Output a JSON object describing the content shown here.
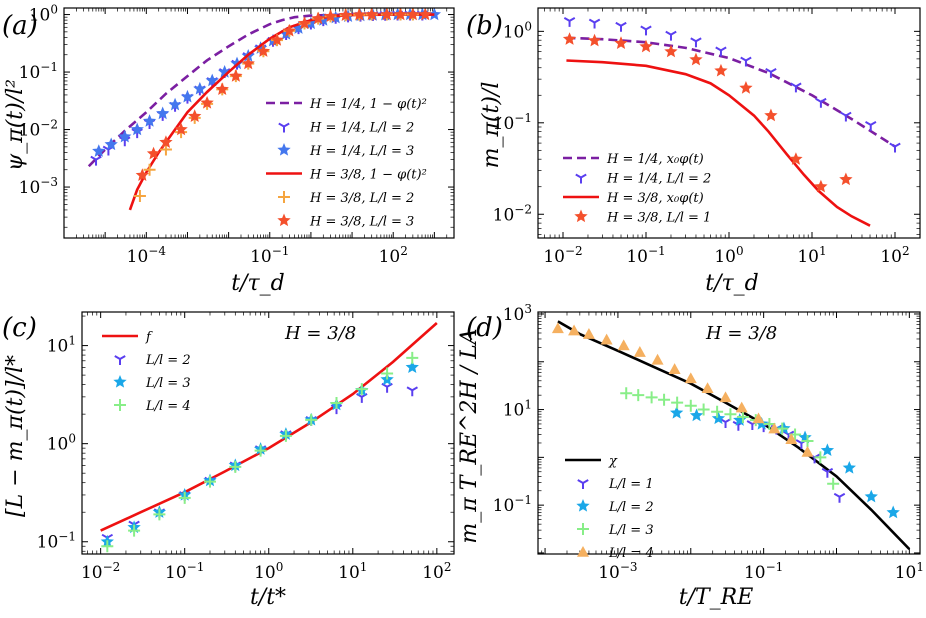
{
  "colors": {
    "purple": "#7b1fa2",
    "red": "#ee1111",
    "blue_marker": "#5a3ff0",
    "blue_star": "#4477ee",
    "orange_marker": "#f5a540",
    "red_star": "#f4502c",
    "cyan_star": "#1aa7e8",
    "green_plus": "#88ee88",
    "orange_tri": "#f5b060",
    "black": "#000000"
  },
  "chart_data": [
    {
      "id": "a",
      "panel_label": "(a)",
      "type": "line",
      "xscale": "log",
      "yscale": "log",
      "xlim": [
        1e-06,
        3000
      ],
      "ylim": [
        0.00013,
        1.3
      ],
      "xticks": [
        {
          "v": 0.0001,
          "label": "10^-4"
        },
        {
          "v": 0.1,
          "label": "10^-1"
        },
        {
          "v": 100,
          "label": "10^2"
        }
      ],
      "yticks": [
        {
          "v": 0.001,
          "label": "10^-3"
        },
        {
          "v": 0.01,
          "label": "10^-2"
        },
        {
          "v": 0.1,
          "label": "10^-1"
        },
        {
          "v": 1,
          "label": "10^0"
        }
      ],
      "xlabel": "t/τ_d",
      "ylabel": "ψ_π(t)/l²",
      "legend_position": "lower-right",
      "series": [
        {
          "name": "H = 1/4, 1 − φ(t)²",
          "kind": "line",
          "style": "dashed",
          "color": "purple",
          "x": [
            4e-06,
            1e-05,
            3e-05,
            0.0001,
            0.0003,
            0.001,
            0.003,
            0.01,
            0.03,
            0.1,
            0.2,
            0.4,
            1,
            3,
            10,
            100,
            1000
          ],
          "y": [
            0.0023,
            0.0045,
            0.0095,
            0.02,
            0.042,
            0.085,
            0.16,
            0.28,
            0.45,
            0.68,
            0.8,
            0.9,
            0.96,
            0.985,
            0.995,
            1,
            1
          ]
        },
        {
          "name": "H = 1/4, L/l = 2",
          "kind": "marker",
          "marker": "tri",
          "color": "blue_marker",
          "x": [
            6e-06,
            1.2e-05,
            3e-05,
            6e-05,
            0.00012,
            0.00025,
            0.0005,
            0.001,
            0.002,
            0.004,
            0.008,
            0.016,
            0.03,
            0.06,
            0.12,
            0.25,
            0.5,
            1,
            2,
            4,
            8,
            16,
            32,
            64,
            128,
            256,
            512
          ],
          "y": [
            0.003,
            0.0045,
            0.0065,
            0.009,
            0.013,
            0.018,
            0.026,
            0.036,
            0.05,
            0.07,
            0.1,
            0.14,
            0.19,
            0.26,
            0.35,
            0.46,
            0.58,
            0.7,
            0.8,
            0.88,
            0.93,
            0.96,
            0.98,
            0.99,
            1,
            1,
            1
          ]
        },
        {
          "name": "H = 1/4, L/l = 3",
          "kind": "marker",
          "marker": "star",
          "color": "blue_star",
          "x": [
            7e-06,
            1.4e-05,
            3e-05,
            6e-05,
            0.00012,
            0.00025,
            0.0005,
            0.001,
            0.002,
            0.004,
            0.008,
            0.016,
            0.03,
            0.06,
            0.12,
            0.25,
            0.5,
            1,
            2,
            4,
            8,
            16,
            32,
            64,
            128,
            256,
            512,
            1000
          ],
          "y": [
            0.0042,
            0.0055,
            0.0075,
            0.01,
            0.014,
            0.019,
            0.027,
            0.037,
            0.051,
            0.071,
            0.1,
            0.14,
            0.19,
            0.26,
            0.35,
            0.46,
            0.58,
            0.7,
            0.8,
            0.88,
            0.93,
            0.96,
            0.98,
            0.99,
            1,
            1,
            1,
            1
          ]
        },
        {
          "name": "H = 3/8, 1 − φ(t)²",
          "kind": "line",
          "style": "solid",
          "color": "red",
          "x": [
            4e-05,
            6e-05,
            0.0001,
            0.0002,
            0.0005,
            0.001,
            0.003,
            0.01,
            0.03,
            0.1,
            0.3,
            1,
            3,
            10,
            100,
            1000
          ],
          "y": [
            0.0004,
            0.0009,
            0.0018,
            0.004,
            0.01,
            0.02,
            0.045,
            0.1,
            0.2,
            0.38,
            0.6,
            0.8,
            0.93,
            0.98,
            1,
            1
          ]
        },
        {
          "name": "H = 3/8, L/l = 2",
          "kind": "marker",
          "marker": "plus",
          "color": "orange_marker",
          "x": [
            7e-05,
            0.00012,
            0.0003,
            0.0007,
            0.0015,
            0.003,
            0.007,
            0.015,
            0.03,
            0.07,
            0.15,
            0.3,
            0.7,
            1.5,
            3,
            7,
            15,
            30,
            70,
            150,
            300
          ],
          "y": [
            0.0007,
            0.002,
            0.0045,
            0.009,
            0.016,
            0.028,
            0.05,
            0.085,
            0.14,
            0.23,
            0.36,
            0.52,
            0.7,
            0.85,
            0.93,
            0.97,
            0.99,
            1,
            1,
            1,
            1
          ]
        },
        {
          "name": "H = 3/8, L/l = 3",
          "kind": "marker",
          "marker": "star",
          "color": "red_star",
          "x": [
            8e-05,
            0.00015,
            0.0003,
            0.0007,
            0.0015,
            0.003,
            0.007,
            0.015,
            0.03,
            0.07,
            0.15,
            0.3,
            0.7,
            1.5,
            3,
            7,
            15,
            30,
            70,
            150,
            300,
            600
          ],
          "y": [
            0.0016,
            0.0038,
            0.006,
            0.01,
            0.017,
            0.029,
            0.05,
            0.085,
            0.14,
            0.23,
            0.36,
            0.52,
            0.7,
            0.85,
            0.93,
            0.97,
            0.99,
            1,
            1,
            1,
            1,
            1
          ]
        }
      ]
    },
    {
      "id": "b",
      "panel_label": "(b)",
      "type": "line",
      "xscale": "log",
      "yscale": "log",
      "xlim": [
        0.005,
        200
      ],
      "ylim": [
        0.0055,
        1.8
      ],
      "xticks": [
        {
          "v": 0.01,
          "label": "10^-2"
        },
        {
          "v": 0.1,
          "label": "10^-1"
        },
        {
          "v": 1,
          "label": "10^0"
        },
        {
          "v": 10,
          "label": "10^1"
        },
        {
          "v": 100,
          "label": "10^2"
        }
      ],
      "yticks": [
        {
          "v": 0.01,
          "label": "10^-2"
        },
        {
          "v": 0.1,
          "label": "10^-1"
        },
        {
          "v": 1,
          "label": "10^0"
        }
      ],
      "xlabel": "t/τ_d",
      "ylabel": "m_π(t)/l",
      "legend_position": "lower-left",
      "series": [
        {
          "name": "H = 1/4, x₀φ(t)",
          "kind": "line",
          "style": "dashed",
          "color": "purple",
          "x": [
            0.011,
            0.03,
            0.1,
            0.3,
            1,
            3,
            10,
            30,
            100
          ],
          "y": [
            0.85,
            0.82,
            0.76,
            0.66,
            0.51,
            0.35,
            0.2,
            0.11,
            0.055
          ]
        },
        {
          "name": "H = 1/4, L/l = 2",
          "kind": "marker",
          "marker": "tri",
          "color": "blue_marker",
          "x": [
            0.012,
            0.024,
            0.05,
            0.1,
            0.2,
            0.4,
            0.8,
            1.6,
            3.2,
            6.4,
            12.8,
            25.6,
            51,
            100
          ],
          "y": [
            1.3,
            1.25,
            1.15,
            1.05,
            0.92,
            0.78,
            0.62,
            0.48,
            0.36,
            0.25,
            0.17,
            0.12,
            0.095,
            0.055
          ]
        },
        {
          "name": "H = 3/8, x₀φ(t)",
          "kind": "line",
          "style": "solid",
          "color": "red",
          "x": [
            0.011,
            0.03,
            0.1,
            0.3,
            0.6,
            1,
            2,
            3,
            5,
            8,
            12,
            20,
            30,
            50
          ],
          "y": [
            0.48,
            0.46,
            0.42,
            0.34,
            0.27,
            0.2,
            0.12,
            0.08,
            0.045,
            0.027,
            0.018,
            0.012,
            0.0095,
            0.0075
          ]
        },
        {
          "name": "H = 3/8, L/l = 1",
          "kind": "marker",
          "marker": "star",
          "color": "red_star",
          "x": [
            0.012,
            0.024,
            0.05,
            0.1,
            0.2,
            0.4,
            0.8,
            1.6,
            3.2,
            6.4,
            12.8,
            25.6
          ],
          "y": [
            0.82,
            0.79,
            0.74,
            0.68,
            0.6,
            0.49,
            0.37,
            0.24,
            0.12,
            0.04,
            0.02,
            0.024
          ]
        }
      ]
    },
    {
      "id": "c",
      "panel_label": "(c)",
      "annotation": "H = 3/8",
      "type": "line",
      "xscale": "log",
      "yscale": "log",
      "xlim": [
        0.006,
        160
      ],
      "ylim": [
        0.075,
        22
      ],
      "xticks": [
        {
          "v": 0.01,
          "label": "10^-2"
        },
        {
          "v": 0.1,
          "label": "10^-1"
        },
        {
          "v": 1,
          "label": "10^0"
        },
        {
          "v": 10,
          "label": "10^1"
        },
        {
          "v": 100,
          "label": "10^2"
        }
      ],
      "yticks": [
        {
          "v": 0.1,
          "label": "10^-1"
        },
        {
          "v": 1,
          "label": "10^0"
        },
        {
          "v": 10,
          "label": "10^1"
        }
      ],
      "xlabel": "t/t*",
      "ylabel": "[L − m_π(t)]/l*",
      "legend_position": "upper-left",
      "series": [
        {
          "name": "f",
          "kind": "line",
          "style": "solid",
          "color": "red",
          "x": [
            0.01,
            0.03,
            0.1,
            0.3,
            1,
            3,
            10,
            30,
            100
          ],
          "y": [
            0.13,
            0.2,
            0.32,
            0.52,
            0.9,
            1.6,
            3.2,
            6.8,
            17
          ]
        },
        {
          "name": "L/l = 2",
          "kind": "marker",
          "marker": "tri",
          "color": "blue_marker",
          "x": [
            0.012,
            0.025,
            0.05,
            0.1,
            0.2,
            0.4,
            0.8,
            1.6,
            3.2,
            6.4,
            12.8,
            25.6,
            51
          ],
          "y": [
            0.11,
            0.15,
            0.2,
            0.3,
            0.42,
            0.6,
            0.88,
            1.25,
            1.75,
            2.3,
            3,
            3.8,
            3.5
          ]
        },
        {
          "name": "L/l = 3",
          "kind": "marker",
          "marker": "star",
          "color": "cyan_star",
          "x": [
            0.012,
            0.025,
            0.05,
            0.1,
            0.2,
            0.4,
            0.8,
            1.6,
            3.2,
            6.4,
            12.8,
            25.6,
            51
          ],
          "y": [
            0.1,
            0.14,
            0.2,
            0.3,
            0.42,
            0.6,
            0.88,
            1.25,
            1.75,
            2.5,
            3.5,
            4.5,
            6
          ]
        },
        {
          "name": "L/l = 4",
          "kind": "marker",
          "marker": "plus",
          "color": "green_plus",
          "x": [
            0.012,
            0.025,
            0.05,
            0.1,
            0.2,
            0.4,
            0.8,
            1.6,
            3.2,
            6.4,
            12.8,
            25.6,
            51
          ],
          "y": [
            0.09,
            0.13,
            0.19,
            0.28,
            0.41,
            0.58,
            0.85,
            1.2,
            1.75,
            2.6,
            3.6,
            5.2,
            7.5
          ]
        }
      ]
    },
    {
      "id": "d",
      "panel_label": "(d)",
      "annotation": "H = 3/8",
      "type": "line",
      "xscale": "log",
      "yscale": "log",
      "xlim": [
        8e-05,
        14
      ],
      "ylim": [
        0.0095,
        1100
      ],
      "xticks": [
        {
          "v": 0.001,
          "label": "10^-3"
        },
        {
          "v": 0.1,
          "label": "10^-1"
        },
        {
          "v": 10,
          "label": "10^1"
        }
      ],
      "yticks": [
        {
          "v": 0.1,
          "label": "10^-1"
        },
        {
          "v": 10,
          "label": "10^1"
        },
        {
          "v": 1000,
          "label": "10^3"
        }
      ],
      "xlabel": "t/T_RE",
      "ylabel": "m_π T_RE^2H / LA",
      "legend_position": "lower-left",
      "series": [
        {
          "name": "χ",
          "kind": "line",
          "style": "solid",
          "color": "black",
          "x": [
            0.00015,
            0.0003,
            0.001,
            0.003,
            0.01,
            0.03,
            0.1,
            0.3,
            1,
            3,
            10
          ],
          "y": [
            700,
            380,
            170,
            80,
            35,
            14,
            5,
            1.6,
            0.4,
            0.08,
            0.012
          ]
        },
        {
          "name": "L/l = 1",
          "kind": "marker",
          "marker": "tri",
          "color": "blue_marker",
          "x": [
            0.03,
            0.045,
            0.07,
            0.1,
            0.15,
            0.22,
            0.33,
            0.5,
            0.75,
            1.1
          ],
          "y": [
            5.5,
            4.8,
            5,
            4.5,
            4,
            3,
            2,
            1,
            0.5,
            0.15
          ]
        },
        {
          "name": "L/l = 2",
          "kind": "marker",
          "marker": "star",
          "color": "cyan_star",
          "x": [
            0.0064,
            0.012,
            0.024,
            0.047,
            0.094,
            0.19,
            0.37,
            0.75,
            1.5,
            3,
            6
          ],
          "y": [
            8.5,
            7.5,
            6.5,
            6,
            5,
            4,
            2.6,
            1.4,
            0.6,
            0.15,
            0.07
          ]
        },
        {
          "name": "L/l = 3",
          "kind": "marker",
          "marker": "plus",
          "color": "green_plus",
          "x": [
            0.0013,
            0.0019,
            0.0029,
            0.0043,
            0.0065,
            0.01,
            0.015,
            0.023,
            0.035,
            0.052,
            0.078,
            0.12,
            0.18,
            0.27,
            0.4,
            0.6,
            0.9
          ],
          "y": [
            22,
            20,
            18,
            16,
            14,
            12,
            10,
            9,
            8,
            7,
            6,
            5,
            4,
            3,
            2.2,
            1,
            0.28
          ]
        },
        {
          "name": "L/l = 4",
          "kind": "marker",
          "marker": "tri_up",
          "color": "orange_tri",
          "x": [
            0.00015,
            0.00025,
            0.0004,
            0.0007,
            0.0012,
            0.002,
            0.0035,
            0.006,
            0.01,
            0.017,
            0.03,
            0.05,
            0.085,
            0.14,
            0.24,
            0.4
          ],
          "y": [
            500,
            450,
            380,
            290,
            220,
            160,
            110,
            70,
            45,
            28,
            18,
            11,
            6.5,
            4,
            2.4,
            1.3
          ]
        }
      ]
    }
  ]
}
